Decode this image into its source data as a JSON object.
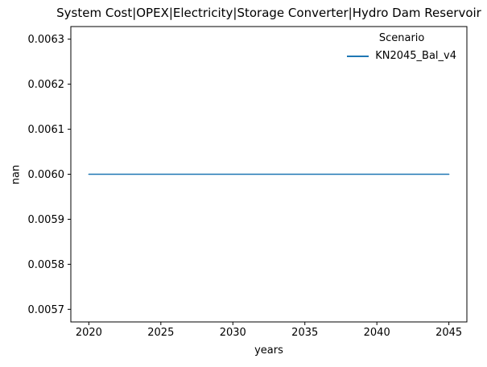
{
  "figure": {
    "background": "#ffffff",
    "text_color": "#000000"
  },
  "chart_data": {
    "type": "line",
    "title": "System Cost|OPEX|Electricity|Storage Converter|Hydro Dam Reservoir",
    "xlabel": "years",
    "ylabel": "nan",
    "x": [
      2020,
      2025,
      2030,
      2035,
      2040,
      2045
    ],
    "series": [
      {
        "name": "KN2045_Bal_v4",
        "color": "#1f77b4",
        "values": [
          0.006,
          0.006,
          0.006,
          0.006,
          0.006,
          0.006
        ]
      }
    ],
    "xlim": [
      2018.75,
      2046.25
    ],
    "ylim": [
      0.005672,
      0.006328
    ],
    "xticks": [
      2020,
      2025,
      2030,
      2035,
      2040,
      2045
    ],
    "xtick_labels": [
      "2020",
      "2025",
      "2030",
      "2035",
      "2040",
      "2045"
    ],
    "yticks": [
      0.0057,
      0.0058,
      0.0059,
      0.006,
      0.0061,
      0.0062,
      0.0063
    ],
    "ytick_labels": [
      "0.0057",
      "0.0058",
      "0.0059",
      "0.0060",
      "0.0061",
      "0.0062",
      "0.0063"
    ],
    "grid": false,
    "legend": {
      "title": "Scenario",
      "position": "upper right",
      "entries": [
        {
          "label": "KN2045_Bal_v4",
          "color": "#1f77b4"
        }
      ]
    }
  }
}
